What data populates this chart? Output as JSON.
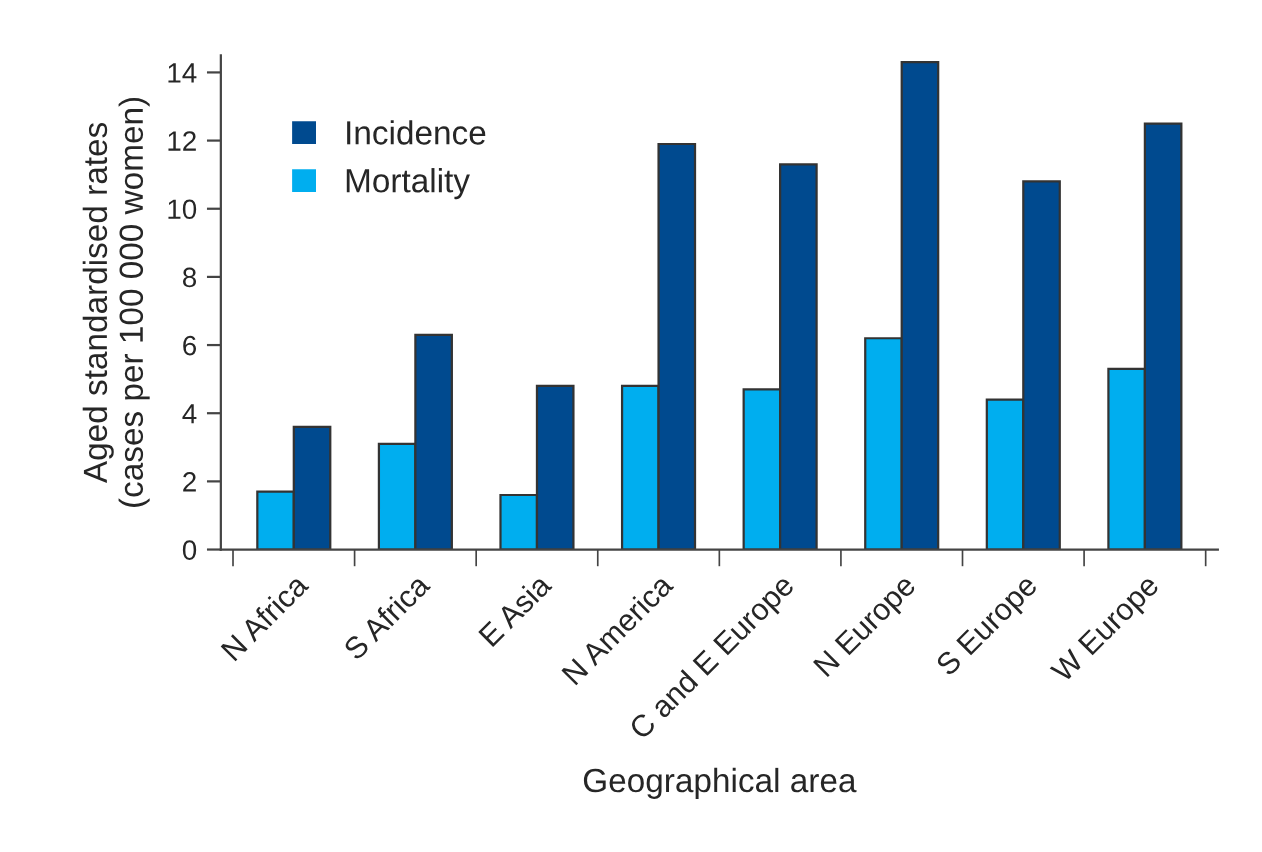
{
  "chart_data": {
    "type": "bar",
    "xlabel": "Geographical area",
    "ylabel": "Aged standardised rates\n(cases per 100 000 women)",
    "categories": [
      "N Africa",
      "S Africa",
      "E Asia",
      "N America",
      "C and E Europe",
      "N Europe",
      "S Europe",
      "W Europe"
    ],
    "series": [
      {
        "name": "Mortality",
        "color": "#00aeef",
        "values": [
          1.7,
          3.1,
          1.6,
          4.8,
          4.7,
          6.2,
          4.4,
          5.3
        ]
      },
      {
        "name": "Incidence",
        "color": "#004a8f",
        "values": [
          3.6,
          6.3,
          4.8,
          11.9,
          11.3,
          14.3,
          10.8,
          12.5
        ]
      }
    ],
    "ylim": [
      0,
      14.5
    ],
    "yticks": [
      0,
      2,
      4,
      6,
      8,
      10,
      12,
      14
    ],
    "grid": false,
    "legend": "top left"
  }
}
